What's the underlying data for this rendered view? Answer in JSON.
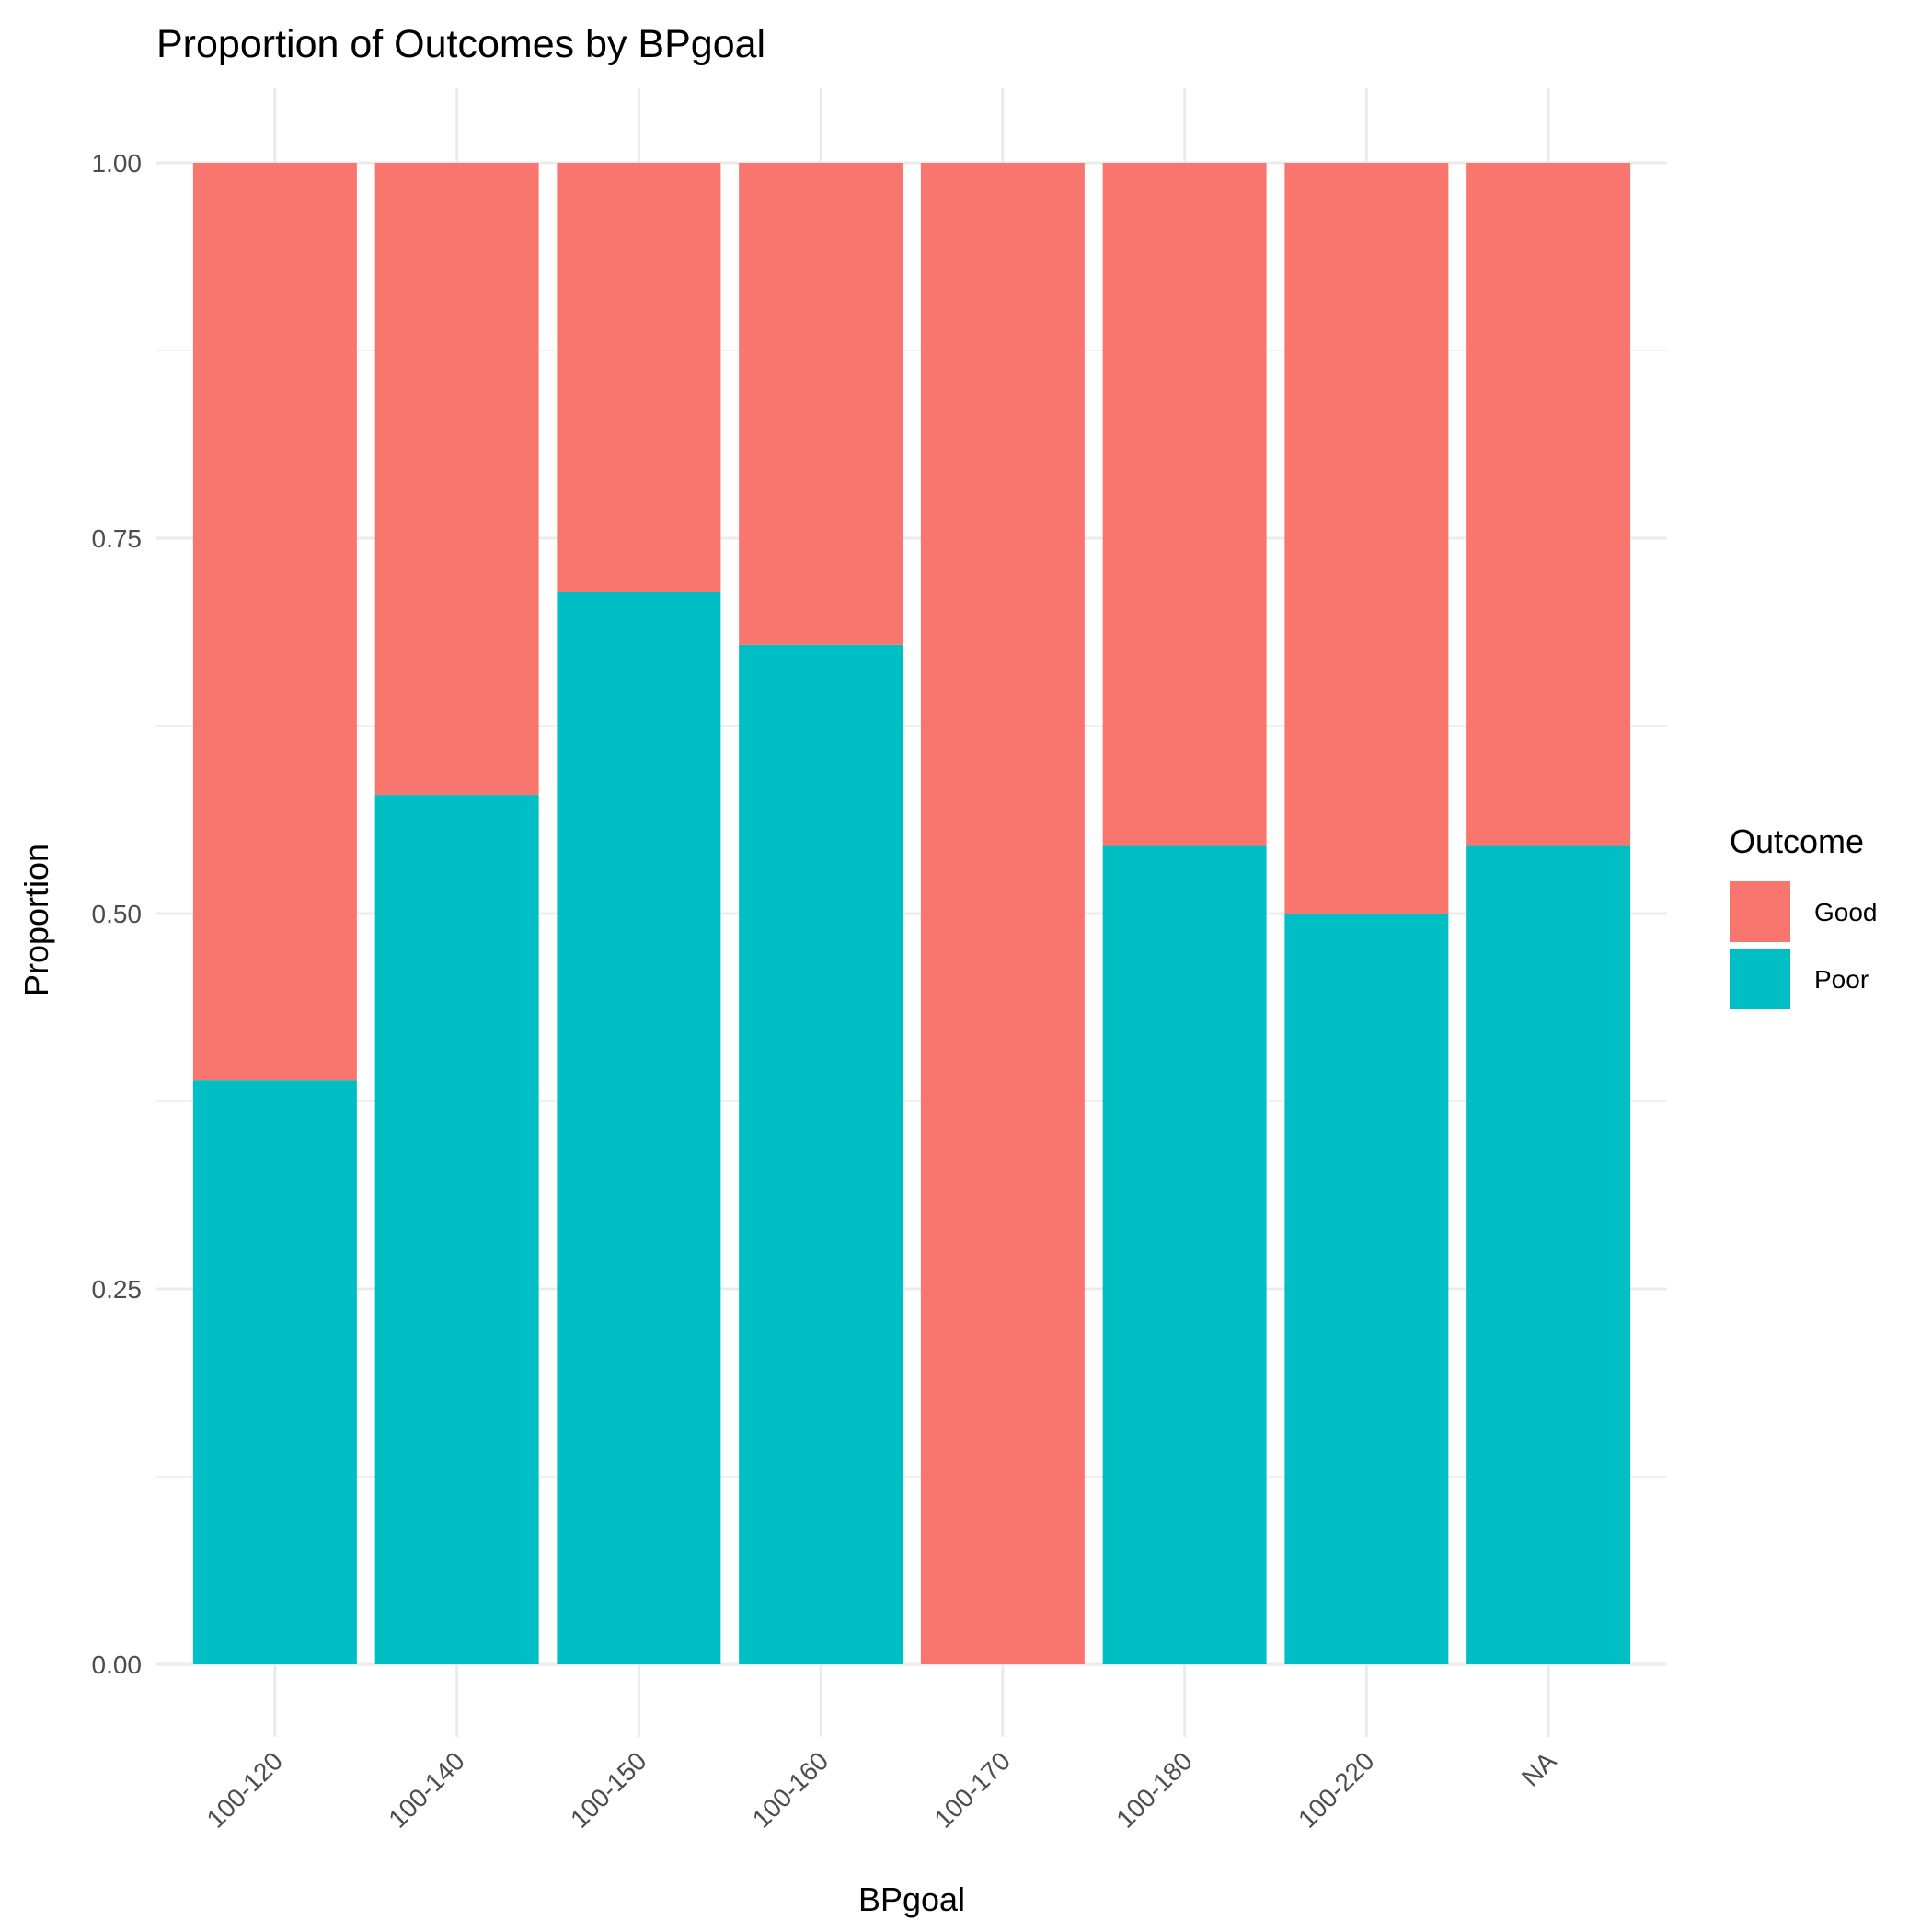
{
  "chart_data": {
    "type": "bar",
    "stacked": true,
    "title": "Proportion of Outcomes by BPgoal",
    "xlabel": "BPgoal",
    "ylabel": "Proportion",
    "ylim": [
      0,
      1
    ],
    "yticks": [
      "0.00",
      "0.25",
      "0.50",
      "0.75",
      "1.00"
    ],
    "categories": [
      "100-120",
      "100-140",
      "100-150",
      "100-160",
      "100-170",
      "100-180",
      "100-220",
      "NA"
    ],
    "series": [
      {
        "name": "Poor",
        "color": "#00BFC4",
        "values": [
          0.389,
          0.579,
          0.714,
          0.679,
          0.0,
          0.545,
          0.5,
          0.545
        ]
      },
      {
        "name": "Good",
        "color": "#F8766D",
        "values": [
          0.611,
          0.421,
          0.286,
          0.321,
          1.0,
          0.455,
          0.5,
          0.455
        ]
      }
    ],
    "legend": {
      "title": "Outcome",
      "position": "right",
      "entries": [
        {
          "label": "Good",
          "color": "#F8766D"
        },
        {
          "label": "Poor",
          "color": "#00BFC4"
        }
      ]
    },
    "grid": true
  }
}
